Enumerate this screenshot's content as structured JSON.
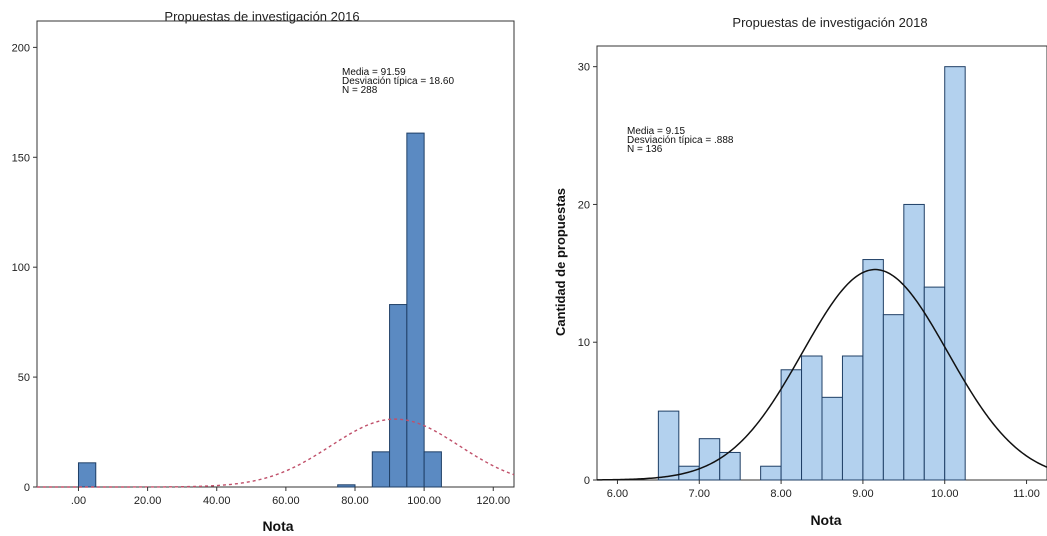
{
  "chart_data": [
    {
      "type": "bar",
      "title": "Propuestas de investigación 2016",
      "xlabel": "Nota",
      "ylabel": "",
      "xlim": [
        -12,
        126
      ],
      "ylim": [
        0,
        212
      ],
      "x_ticks": [
        0,
        20,
        40,
        60,
        80,
        100,
        120
      ],
      "x_tick_labels": [
        ".00",
        "20.00",
        "40.00",
        "60.00",
        "80.00",
        "100.00",
        "120.00"
      ],
      "y_ticks": [
        0,
        50,
        100,
        150,
        200
      ],
      "y_tick_labels": [
        "0",
        "50",
        "100",
        "150",
        "200"
      ],
      "bins": [
        {
          "x0": 0,
          "x1": 5,
          "value": 11
        },
        {
          "x0": 75,
          "x1": 80,
          "value": 1
        },
        {
          "x0": 85,
          "x1": 90,
          "value": 16
        },
        {
          "x0": 90,
          "x1": 95,
          "value": 83
        },
        {
          "x0": 95,
          "x1": 100,
          "value": 161
        },
        {
          "x0": 100,
          "x1": 105,
          "value": 16
        }
      ],
      "curve": {
        "mean": 91.59,
        "sd": 18.6,
        "n": 288,
        "bin_width": 5,
        "style": "dashed",
        "color": "#c0506a"
      },
      "bar_color": "#5b8ac2",
      "bar_edge": "#1f3f66",
      "stats_text": [
        "Media = 91.59",
        "Desviación típica = 18.60",
        "N = 288"
      ]
    },
    {
      "type": "bar",
      "title": "Propuestas de investigación 2018",
      "xlabel": "Nota",
      "ylabel": "Cantidad de propuestas",
      "xlim": [
        5.75,
        11.25
      ],
      "ylim": [
        0,
        31.5
      ],
      "x_ticks": [
        6,
        7,
        8,
        9,
        10,
        11
      ],
      "x_tick_labels": [
        "6.00",
        "7.00",
        "8.00",
        "9.00",
        "10.00",
        "11.00"
      ],
      "y_ticks": [
        0,
        10,
        20,
        30
      ],
      "y_tick_labels": [
        "0",
        "10",
        "20",
        "30"
      ],
      "bins": [
        {
          "x0": 6.5,
          "x1": 6.75,
          "value": 5
        },
        {
          "x0": 6.75,
          "x1": 7.0,
          "value": 1
        },
        {
          "x0": 7.0,
          "x1": 7.25,
          "value": 3
        },
        {
          "x0": 7.25,
          "x1": 7.5,
          "value": 2
        },
        {
          "x0": 7.75,
          "x1": 8.0,
          "value": 1
        },
        {
          "x0": 8.0,
          "x1": 8.25,
          "value": 8
        },
        {
          "x0": 8.25,
          "x1": 8.5,
          "value": 9
        },
        {
          "x0": 8.5,
          "x1": 8.75,
          "value": 6
        },
        {
          "x0": 8.75,
          "x1": 9.0,
          "value": 9
        },
        {
          "x0": 9.0,
          "x1": 9.25,
          "value": 16
        },
        {
          "x0": 9.25,
          "x1": 9.5,
          "value": 12
        },
        {
          "x0": 9.5,
          "x1": 9.75,
          "value": 20
        },
        {
          "x0": 9.75,
          "x1": 10.0,
          "value": 14
        },
        {
          "x0": 10.0,
          "x1": 10.25,
          "value": 30
        }
      ],
      "curve": {
        "mean": 9.15,
        "sd": 0.888,
        "n": 136,
        "bin_width": 0.25,
        "style": "solid",
        "color": "#111111"
      },
      "bar_color": "#b3d1ee",
      "bar_edge": "#1f3f66",
      "stats_text": [
        "Media = 9.15",
        "Desviación típica = .888",
        "N = 136"
      ]
    }
  ]
}
